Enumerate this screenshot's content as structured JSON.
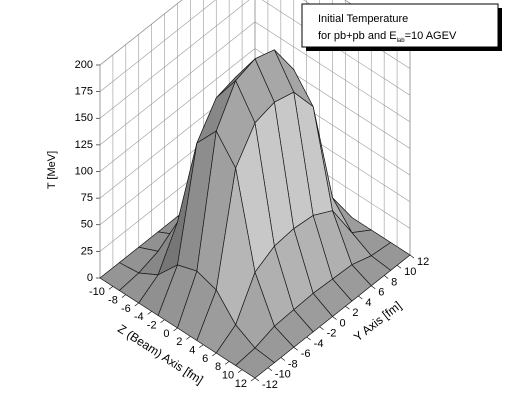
{
  "chart_data": {
    "type": "surface",
    "title": "Initial Temperature",
    "subtitle": {
      "text": "for pb+pb and E",
      "subscript": "lab",
      "suffix": "=10 AGEV"
    },
    "x_label": "Z (Beam) Axis [fm]",
    "y_label": "Y Axis [fm]",
    "z_label": "T [MeV]",
    "xlim": [
      -12,
      12
    ],
    "xticks": [
      -10,
      -8,
      -6,
      -4,
      -2,
      0,
      2,
      4,
      6,
      8,
      10,
      12
    ],
    "ylim": [
      -12,
      12
    ],
    "yticks": [
      -12,
      -10,
      -8,
      -6,
      -4,
      -2,
      0,
      2,
      4,
      6,
      8,
      10,
      12
    ],
    "zlim": [
      0,
      200
    ],
    "zticks": [
      0,
      25,
      50,
      75,
      100,
      125,
      150,
      175,
      200
    ],
    "grid": true,
    "color": "#7a7a7a",
    "x": [
      -12,
      -9,
      -6,
      -3,
      0,
      3,
      6,
      9,
      12
    ],
    "y": [
      -12,
      -9,
      -6,
      -3,
      0,
      3,
      6,
      9,
      12
    ],
    "z": [
      [
        0,
        0,
        0,
        0,
        0,
        0,
        0,
        0,
        0
      ],
      [
        0,
        2,
        12,
        33,
        39,
        33,
        12,
        2,
        0
      ],
      [
        0,
        8,
        47,
        133,
        156,
        133,
        47,
        8,
        0
      ],
      [
        0,
        9,
        57,
        161,
        189,
        161,
        57,
        9,
        0
      ],
      [
        0,
        10,
        59,
        166,
        195,
        166,
        59,
        10,
        0
      ],
      [
        0,
        9,
        57,
        161,
        189,
        161,
        57,
        9,
        0
      ],
      [
        0,
        8,
        47,
        133,
        156,
        133,
        47,
        8,
        0
      ],
      [
        0,
        2,
        12,
        33,
        39,
        33,
        12,
        2,
        0
      ],
      [
        0,
        0,
        0,
        0,
        0,
        0,
        0,
        0,
        0
      ]
    ]
  }
}
